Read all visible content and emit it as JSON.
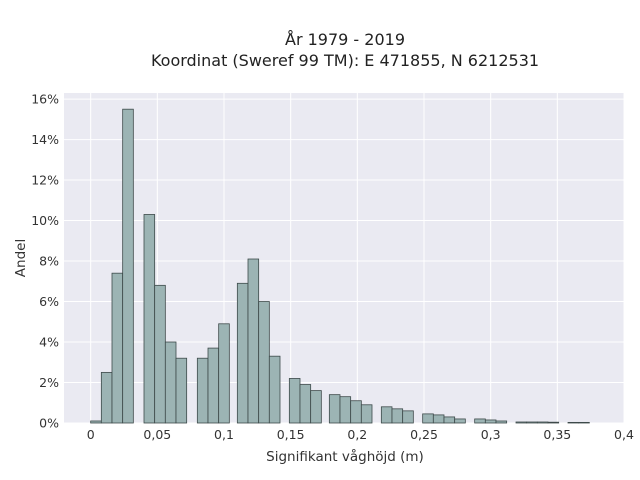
{
  "chart_data": {
    "type": "bar",
    "title": "År 1979 - 2019",
    "subtitle": "Koordinat (Sweref 99 TM): E 471855, N 6212531",
    "xlabel": "Signifikant våghöjd (m)",
    "ylabel": "Andel",
    "xlim": [
      -0.02,
      0.4
    ],
    "ylim": [
      0,
      16.3
    ],
    "x_ticks": [
      0,
      0.05,
      0.1,
      0.15,
      0.2,
      0.25,
      0.3,
      0.35,
      0.4
    ],
    "x_tick_labels": [
      "0",
      "0,05",
      "0,1",
      "0,15",
      "0,2",
      "0,25",
      "0,3",
      "0,35",
      "0,4"
    ],
    "y_ticks": [
      0,
      2,
      4,
      6,
      8,
      10,
      12,
      14,
      16
    ],
    "y_tick_labels": [
      "0%",
      "2%",
      "4%",
      "6%",
      "8%",
      "10%",
      "12%",
      "14%",
      "16%"
    ],
    "bin_width": 0.008,
    "grid": true,
    "bars": [
      {
        "x": 0.0,
        "value": 0.1
      },
      {
        "x": 0.008,
        "value": 2.5
      },
      {
        "x": 0.016,
        "value": 7.4
      },
      {
        "x": 0.024,
        "value": 15.5
      },
      {
        "x": 0.04,
        "value": 10.3
      },
      {
        "x": 0.048,
        "value": 6.8
      },
      {
        "x": 0.056,
        "value": 4.0
      },
      {
        "x": 0.064,
        "value": 3.2
      },
      {
        "x": 0.08,
        "value": 3.2
      },
      {
        "x": 0.088,
        "value": 3.7
      },
      {
        "x": 0.096,
        "value": 4.9
      },
      {
        "x": 0.11,
        "value": 6.9
      },
      {
        "x": 0.118,
        "value": 8.1
      },
      {
        "x": 0.126,
        "value": 6.0
      },
      {
        "x": 0.134,
        "value": 3.3
      },
      {
        "x": 0.149,
        "value": 2.2
      },
      {
        "x": 0.157,
        "value": 1.9
      },
      {
        "x": 0.165,
        "value": 1.6
      },
      {
        "x": 0.179,
        "value": 1.4
      },
      {
        "x": 0.187,
        "value": 1.3
      },
      {
        "x": 0.195,
        "value": 1.1
      },
      {
        "x": 0.203,
        "value": 0.9
      },
      {
        "x": 0.218,
        "value": 0.8
      },
      {
        "x": 0.226,
        "value": 0.7
      },
      {
        "x": 0.234,
        "value": 0.6
      },
      {
        "x": 0.249,
        "value": 0.45
      },
      {
        "x": 0.257,
        "value": 0.4
      },
      {
        "x": 0.265,
        "value": 0.3
      },
      {
        "x": 0.273,
        "value": 0.2
      },
      {
        "x": 0.288,
        "value": 0.2
      },
      {
        "x": 0.296,
        "value": 0.15
      },
      {
        "x": 0.304,
        "value": 0.1
      },
      {
        "x": 0.319,
        "value": 0.05
      },
      {
        "x": 0.327,
        "value": 0.05
      },
      {
        "x": 0.335,
        "value": 0.05
      },
      {
        "x": 0.343,
        "value": 0.04
      },
      {
        "x": 0.358,
        "value": 0.03
      },
      {
        "x": 0.366,
        "value": 0.03
      }
    ],
    "colors": {
      "bar_fill": "#9cb4b4",
      "bar_edge": "#3d4a4a",
      "plot_background": "#eaeaf2",
      "grid": "#ffffff"
    }
  }
}
